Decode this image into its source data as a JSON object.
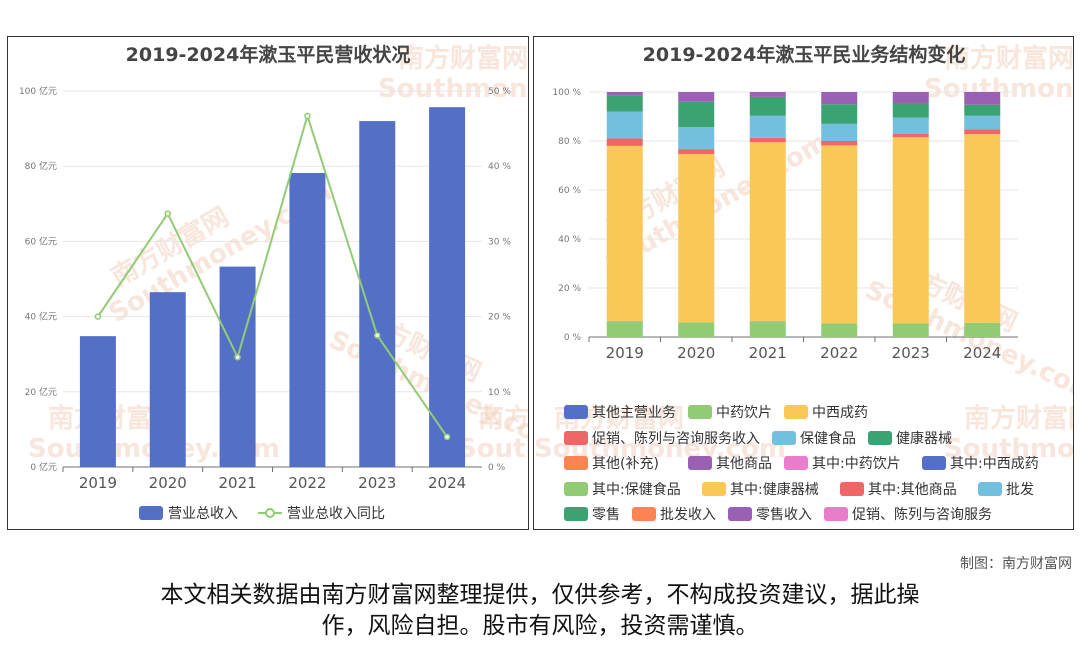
{
  "colors": {
    "bar": "#5470c6",
    "line": "#91cc75",
    "grid": "#e6e6e6",
    "axis": "#6e7079"
  },
  "watermark": {
    "cn": "南方财富网",
    "en": "Southmoney.com"
  },
  "chart_data": [
    {
      "type": "bar",
      "title": "2019-2024年漱玉平民营收状况",
      "categories": [
        "2019",
        "2020",
        "2021",
        "2022",
        "2023",
        "2024"
      ],
      "y_axis_left": {
        "ticks": [
          "0 亿元",
          "20 亿元",
          "40 亿元",
          "60 亿元",
          "80 亿元",
          "100 亿元"
        ],
        "range": [
          0,
          100
        ]
      },
      "y_axis_right": {
        "ticks": [
          "0 %",
          "10 %",
          "20 %",
          "30 %",
          "40 %",
          "50 %"
        ],
        "range": [
          0,
          50
        ]
      },
      "series": [
        {
          "name": "营业总收入",
          "type": "bar",
          "axis": "left",
          "values": [
            34.8,
            46.5,
            53.3,
            78.2,
            92.0,
            95.7
          ],
          "color": "#5470c6"
        },
        {
          "name": "营业总收入同比",
          "type": "line",
          "axis": "right",
          "values": [
            20.0,
            33.7,
            14.6,
            46.7,
            17.5,
            4.0
          ],
          "color": "#91cc75"
        }
      ],
      "grid": true,
      "legend_position": "bottom"
    },
    {
      "type": "bar",
      "stacked": true,
      "title": "2019-2024年漱玉平民业务结构变化",
      "categories": [
        "2019",
        "2020",
        "2021",
        "2022",
        "2023",
        "2024"
      ],
      "y_axis": {
        "ticks": [
          "0 %",
          "20 %",
          "40 %",
          "60 %",
          "80 %",
          "100 %"
        ],
        "range": [
          0,
          100
        ]
      },
      "series": [
        {
          "name": "其他主营业务",
          "color": "#5470c6",
          "values": [
            0,
            0,
            0,
            0,
            0,
            0
          ]
        },
        {
          "name": "中药饮片",
          "color": "#91cc75",
          "values": [
            6.5,
            6.0,
            6.5,
            5.5,
            5.5,
            5.8
          ]
        },
        {
          "name": "中西成药",
          "color": "#fac858",
          "values": [
            71.5,
            68.7,
            73.0,
            72.7,
            76.0,
            77.0
          ]
        },
        {
          "name": "促销、陈列与咨询服务收入",
          "color": "#ee6666",
          "values": [
            3.0,
            2.0,
            1.8,
            1.8,
            1.5,
            2.0
          ]
        },
        {
          "name": "保健食品",
          "color": "#73c0de",
          "values": [
            11.0,
            9.0,
            9.0,
            7.0,
            6.5,
            5.5
          ]
        },
        {
          "name": "健康器械",
          "color": "#3ba272",
          "values": [
            6.5,
            10.3,
            7.7,
            8.0,
            6.0,
            4.5
          ]
        },
        {
          "name": "其他(补充)",
          "color": "#fc8452",
          "values": [
            0,
            0,
            0,
            0,
            0,
            0
          ]
        },
        {
          "name": "其他商品",
          "color": "#9a60b4",
          "values": [
            1.5,
            4.0,
            2.0,
            5.0,
            4.5,
            5.2
          ]
        },
        {
          "name": "其中:中药饮片",
          "color": "#ea7ccc",
          "values": [
            0,
            0,
            0,
            0,
            0,
            0
          ]
        },
        {
          "name": "其中:中西成药",
          "color": "#5470c6",
          "values": [
            0,
            0,
            0,
            0,
            0,
            0
          ]
        },
        {
          "name": "其中:保健食品",
          "color": "#91cc75",
          "values": [
            0,
            0,
            0,
            0,
            0,
            0
          ]
        },
        {
          "name": "其中:健康器械",
          "color": "#fac858",
          "values": [
            0,
            0,
            0,
            0,
            0,
            0
          ]
        },
        {
          "name": "其中:其他商品",
          "color": "#ee6666",
          "values": [
            0,
            0,
            0,
            0,
            0,
            0
          ]
        },
        {
          "name": "批发",
          "color": "#73c0de",
          "values": [
            0,
            0,
            0,
            0,
            0,
            0
          ]
        },
        {
          "name": "零售",
          "color": "#3ba272",
          "values": [
            0,
            0,
            0,
            0,
            0,
            0
          ]
        },
        {
          "name": "批发收入",
          "color": "#fc8452",
          "values": [
            0,
            0,
            0,
            0,
            0,
            0
          ]
        },
        {
          "name": "零售收入",
          "color": "#9a60b4",
          "values": [
            0,
            0,
            0,
            0,
            0,
            0
          ]
        },
        {
          "name": "促销、陈列与咨询服务",
          "color": "#ea7ccc",
          "values": [
            0,
            0,
            0,
            0,
            0,
            0
          ]
        }
      ],
      "grid": true,
      "legend_position": "bottom"
    }
  ],
  "footer": {
    "credit": "制图：南方财富网",
    "disclaimer_line1": "本文相关数据由南方财富网整理提供，仅供参考，不构成投资建议，据此操",
    "disclaimer_line2": "作，风险自担。股市有风险，投资需谨慎。"
  }
}
